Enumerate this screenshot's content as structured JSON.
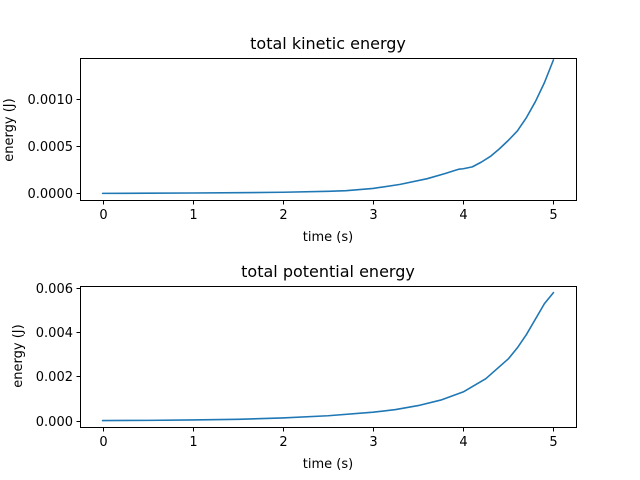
{
  "chart_data": [
    {
      "type": "line",
      "title": "total kinetic energy",
      "xlabel": "time (s)",
      "ylabel": "energy (J)",
      "xlim": [
        -0.25,
        5.25
      ],
      "ylim": [
        -7e-05,
        0.00143
      ],
      "xticks": [
        0,
        1,
        2,
        3,
        4,
        5
      ],
      "xtick_labels": [
        "0",
        "1",
        "2",
        "3",
        "4",
        "5"
      ],
      "yticks": [
        0,
        0.0005,
        0.001
      ],
      "ytick_labels": [
        "0.0000",
        "0.0005",
        "0.0010"
      ],
      "grid": false,
      "color": "#1f77b4",
      "series": [
        {
          "x": [
            0,
            0.5,
            1.0,
            1.5,
            2.0,
            2.5,
            2.7,
            3.0,
            3.3,
            3.6,
            3.8,
            3.9,
            3.95,
            4.0,
            4.1,
            4.2,
            4.3,
            4.4,
            4.5,
            4.6,
            4.7,
            4.8,
            4.9,
            5.0
          ],
          "values": [
            0.0,
            2e-06,
            4e-06,
            7e-06,
            1.2e-05,
            2.2e-05,
            2.8e-05,
            5.2e-05,
            9.5e-05,
            0.000155,
            0.00021,
            0.00024,
            0.000255,
            0.00026,
            0.00028,
            0.00033,
            0.00039,
            0.00047,
            0.00056,
            0.00066,
            0.0008,
            0.00097,
            0.00117,
            0.00141
          ]
        }
      ]
    },
    {
      "type": "line",
      "title": "total potential energy",
      "xlabel": "time (s)",
      "ylabel": "energy (J)",
      "xlim": [
        -0.25,
        5.25
      ],
      "ylim": [
        -0.00029,
        0.0061
      ],
      "xticks": [
        0,
        1,
        2,
        3,
        4,
        5
      ],
      "xtick_labels": [
        "0",
        "1",
        "2",
        "3",
        "4",
        "5"
      ],
      "yticks": [
        0,
        0.002,
        0.004,
        0.006
      ],
      "ytick_labels": [
        "0.000",
        "0.002",
        "0.004",
        "0.006"
      ],
      "grid": false,
      "color": "#1f77b4",
      "series": [
        {
          "x": [
            0,
            0.5,
            1.0,
            1.5,
            2.0,
            2.5,
            3.0,
            3.25,
            3.5,
            3.75,
            4.0,
            4.25,
            4.5,
            4.6,
            4.7,
            4.8,
            4.9,
            5.0
          ],
          "values": [
            0.0,
            1e-05,
            3e-05,
            6e-05,
            0.00012,
            0.00022,
            0.00038,
            0.0005,
            0.00068,
            0.00093,
            0.0013,
            0.0019,
            0.0028,
            0.0033,
            0.0039,
            0.0046,
            0.0053,
            0.0058
          ]
        }
      ]
    }
  ]
}
